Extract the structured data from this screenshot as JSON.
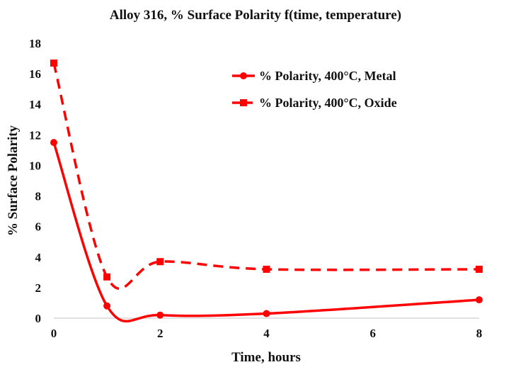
{
  "chart_data": {
    "type": "line",
    "title": "Alloy 316, % Surface Polarity f(time, temperature)",
    "xlabel": "Time, hours",
    "ylabel": "% Surface Polarity",
    "xlim": [
      0,
      8
    ],
    "ylim": [
      0,
      18
    ],
    "x_ticks": [
      0,
      2,
      4,
      6,
      8
    ],
    "y_ticks": [
      0,
      2,
      4,
      6,
      8,
      10,
      12,
      14,
      16,
      18
    ],
    "grid": false,
    "legend_position": "top-right",
    "series": [
      {
        "name": "% Polarity, 400°C, Metal",
        "x": [
          0,
          1,
          2,
          4,
          8
        ],
        "values": [
          11.5,
          0.8,
          0.2,
          0.3,
          1.2
        ],
        "color": "#ff0000",
        "line_style": "solid",
        "marker": "circle"
      },
      {
        "name": "% Polarity, 400°C, Oxide",
        "x": [
          0,
          1,
          2,
          4,
          8
        ],
        "values": [
          16.7,
          2.7,
          3.7,
          3.2,
          3.2
        ],
        "color": "#ff0000",
        "line_style": "dashed",
        "marker": "square"
      }
    ]
  }
}
